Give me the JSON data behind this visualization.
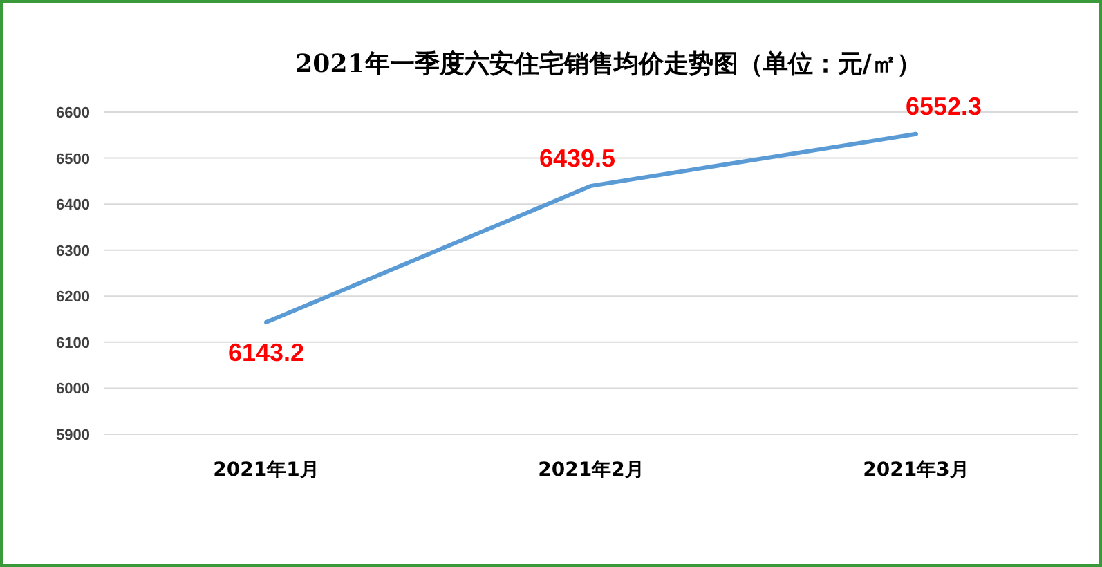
{
  "chart_data": {
    "type": "line",
    "title": "2021年一季度六安住宅销售均价走势图（单位：元/㎡）",
    "categories": [
      "2021年1月",
      "2021年2月",
      "2021年3月"
    ],
    "series": [
      {
        "color": "#5b9bd5",
        "values": [
          6143.2,
          6439.5,
          6552.3
        ]
      }
    ],
    "ylim": [
      5900,
      6600
    ],
    "yticks": [
      5900,
      6000,
      6100,
      6200,
      6300,
      6400,
      6500,
      6600
    ],
    "grid": "y",
    "data_labels": true,
    "marker": "none",
    "line_style": "solid"
  }
}
